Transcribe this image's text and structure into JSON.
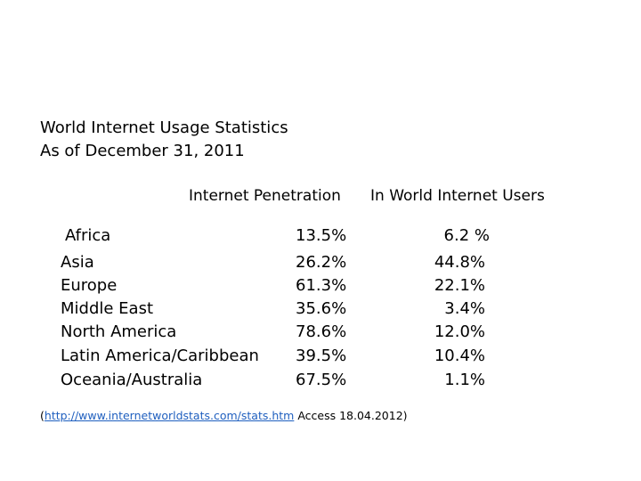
{
  "title": {
    "line1": "World Internet Usage Statistics",
    "line2": "As of December 31, 2011"
  },
  "headers": {
    "penetration": "Internet Penetration",
    "share": "In World Internet Users"
  },
  "rows": [
    {
      "region": "Africa",
      "penetration": "13.5%",
      "share": "6.2 %"
    },
    {
      "region": "Asia",
      "penetration": "26.2%",
      "share": "44.8%"
    },
    {
      "region": "Europe",
      "penetration": "61.3%",
      "share": "22.1%"
    },
    {
      "region": "Middle East",
      "penetration": "35.6%",
      "share": "3.4%"
    },
    {
      "region": "North America",
      "penetration": "78.6%",
      "share": "12.0%"
    },
    {
      "region": "Latin America/Caribbean",
      "penetration": "39.5%",
      "share": "10.4%"
    },
    {
      "region": "Oceania/Australia",
      "penetration": "67.5%",
      "share": "1.1%"
    }
  ],
  "source": {
    "open_paren": "(",
    "link_text": "http://www.internetworldstats.com/stats.htm",
    "access_text": " Access 18.04.2012)"
  }
}
